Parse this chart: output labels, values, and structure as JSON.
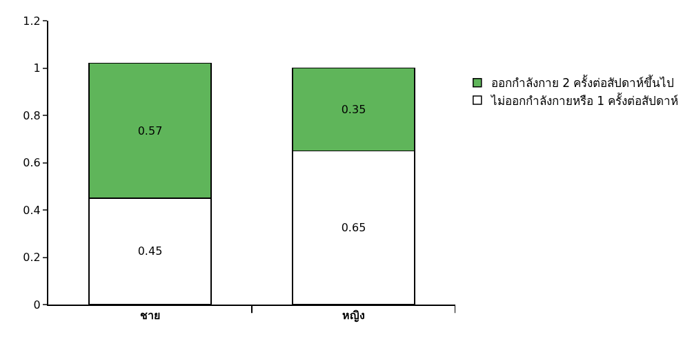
{
  "chart_data": {
    "type": "bar",
    "stacked": true,
    "categories": [
      "ชาย",
      "หญิง"
    ],
    "series": [
      {
        "name": "ไม่ออกกำลังกายหรือ 1 ครั้งต่อสัปดาห์",
        "color": "#ffffff",
        "values": [
          0.45,
          0.65
        ]
      },
      {
        "name": "ออกกำลังกาย 2 ครั้งต่อสัปดาห์ขึ้นไป",
        "color": "#5fb55a",
        "values": [
          0.57,
          0.35
        ]
      }
    ],
    "ylim": [
      0,
      1.2
    ],
    "yticks": [
      0,
      0.2,
      0.4,
      0.6,
      0.8,
      1,
      1.2
    ],
    "grid": false,
    "legend": "right",
    "data_labels": true
  }
}
